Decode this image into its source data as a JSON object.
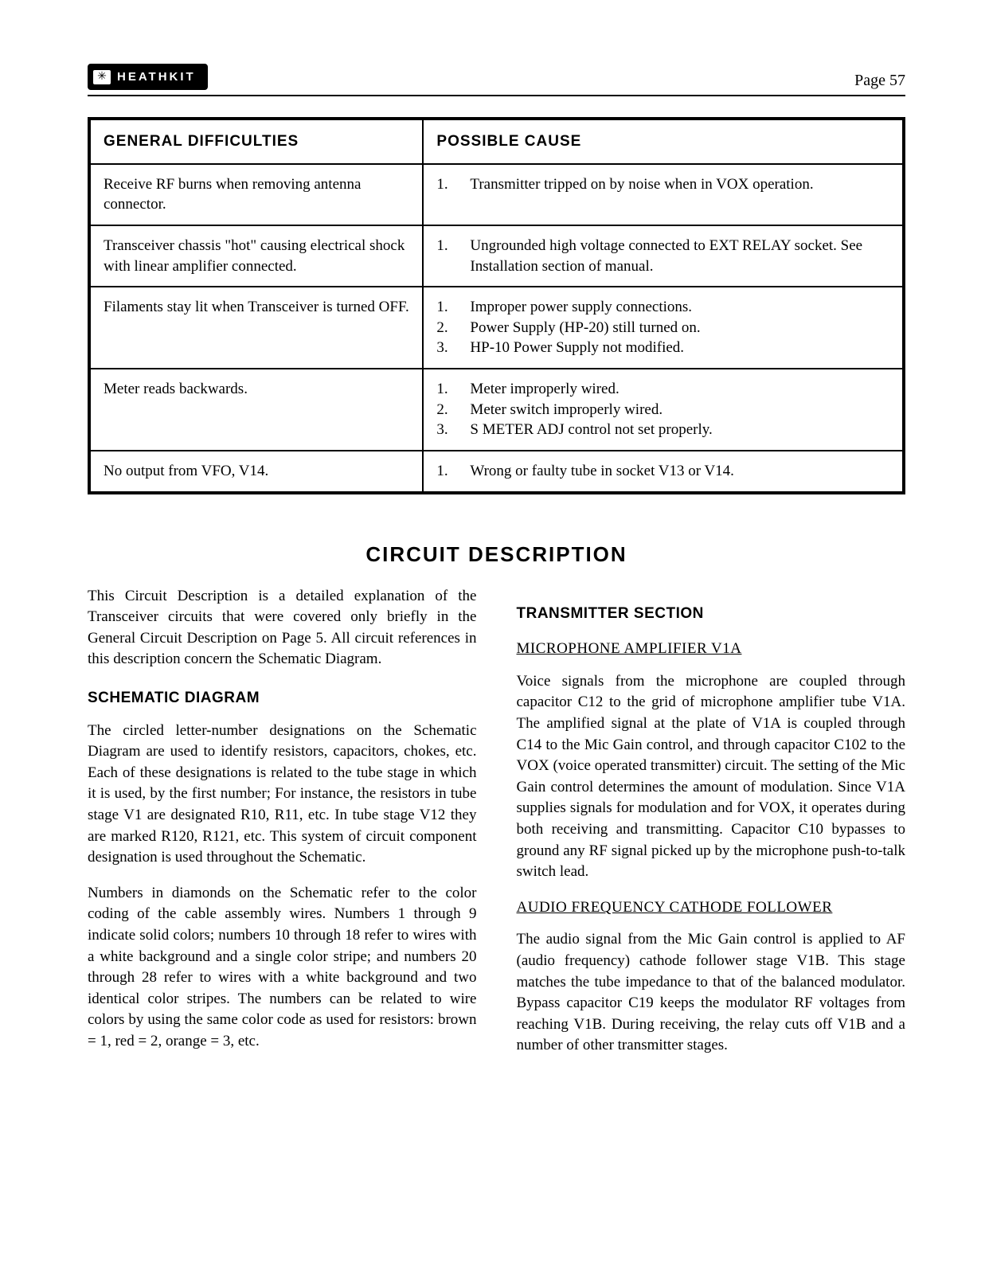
{
  "header": {
    "logo_text": "HEATHKIT",
    "page_label": "Page 57"
  },
  "table": {
    "headers": {
      "left": "GENERAL DIFFICULTIES",
      "right": "POSSIBLE CAUSE"
    },
    "rows": [
      {
        "difficulty": "Receive RF burns when removing antenna connector.",
        "causes": [
          "Transmitter tripped on by noise when in VOX operation."
        ]
      },
      {
        "difficulty": "Transceiver chassis \"hot\" causing electrical shock with linear amplifier connected.",
        "causes": [
          "Ungrounded high voltage connected to EXT RELAY socket. See Installation section of manual."
        ]
      },
      {
        "difficulty": "Filaments stay lit when Transceiver is turned OFF.",
        "causes": [
          "Improper power supply connections.",
          "Power Supply (HP-20) still turned on.",
          "HP-10 Power Supply not modified."
        ]
      },
      {
        "difficulty": "Meter reads backwards.",
        "causes": [
          "Meter improperly wired.",
          "Meter switch improperly wired.",
          "S METER ADJ control not set properly."
        ]
      },
      {
        "difficulty": "No output from VFO, V14.",
        "causes": [
          "Wrong or faulty tube in socket V13 or V14."
        ]
      }
    ]
  },
  "circuit": {
    "title": "CIRCUIT DESCRIPTION",
    "intro": "This Circuit Description is a detailed explanation of the Transceiver circuits that were covered only briefly in the General Circuit Description on Page 5. All circuit references in this description concern the Schematic Diagram.",
    "schematic_heading": "SCHEMATIC DIAGRAM",
    "schematic_p1": "The circled letter-number designations on the Schematic Diagram are used to identify resistors, capacitors, chokes, etc. Each of these designations is related to the tube stage in which it is used, by the first number; For instance, the resistors in tube stage V1 are designated R10, R11, etc. In tube stage V12 they are marked R120, R121, etc. This system of circuit component designation is used throughout the Schematic.",
    "schematic_p2": "Numbers in diamonds on the Schematic refer to the color coding of the cable assembly wires. Numbers 1 through 9 indicate solid colors; numbers 10 through 18 refer to wires with a white background and a single color stripe; and numbers 20 through 28 refer to wires with a white background and two identical color stripes. The numbers can be related to wire colors by using the same color code as used for resistors: brown = 1, red = 2, orange = 3, etc.",
    "transmitter_heading": "TRANSMITTER SECTION",
    "mic_heading": "MICROPHONE AMPLIFIER V1A",
    "mic_p": "Voice signals from the microphone are coupled through capacitor C12 to the grid of microphone amplifier tube V1A. The amplified signal at the plate of V1A is coupled through C14 to the Mic Gain control, and through capacitor C102 to the VOX (voice operated transmitter) circuit. The setting of the Mic Gain control determines the amount of modulation. Since V1A supplies signals for modulation and for VOX, it operates during both receiving and transmitting. Capacitor C10 bypasses to ground any RF signal picked up by the microphone push-to-talk switch lead.",
    "af_heading": "AUDIO FREQUENCY CATHODE FOLLOWER",
    "af_p": "The audio signal from the Mic Gain control is applied to AF (audio frequency) cathode follower stage V1B. This stage matches the tube impedance to that of the balanced modulator. Bypass capacitor C19 keeps the modulator RF voltages from reaching V1B. During receiving, the relay cuts off V1B and a number of other transmitter stages."
  },
  "style": {
    "text_color": "#000000",
    "bg_color": "#ffffff",
    "body_fontsize": 19,
    "title_fontsize": 26
  }
}
